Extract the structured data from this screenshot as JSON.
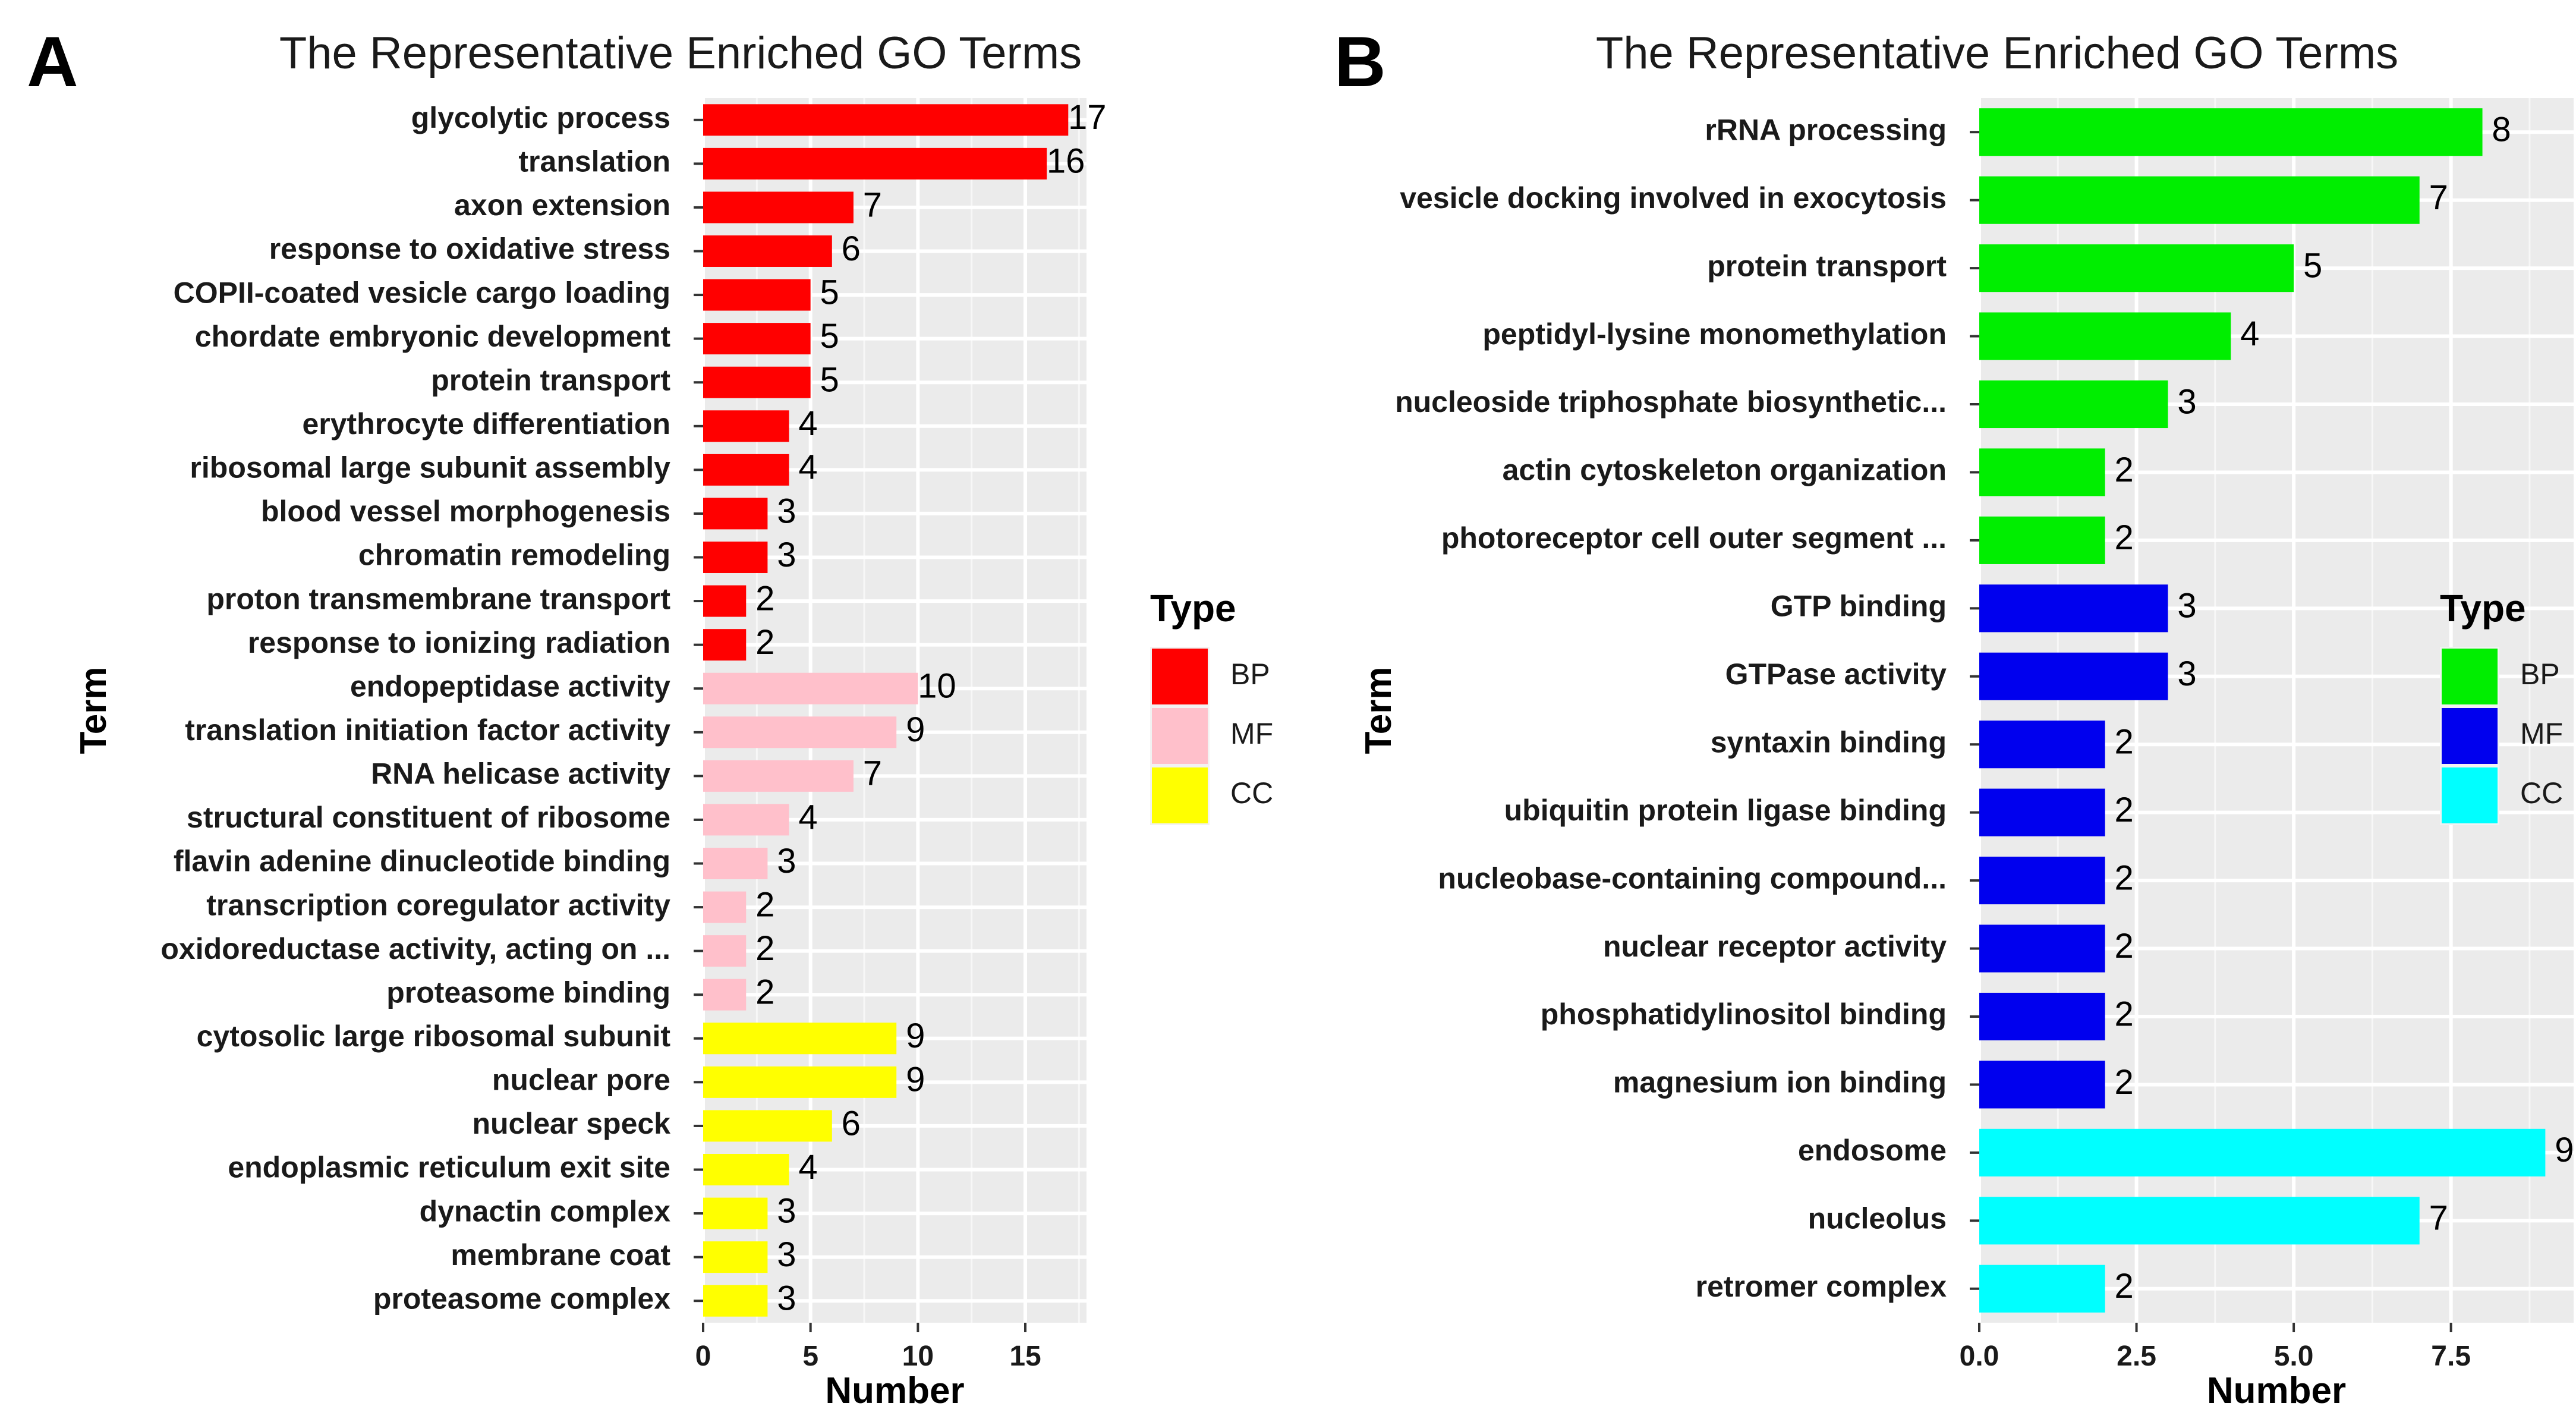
{
  "panels": [
    {
      "letter": "A",
      "chart_data": {
        "type": "bar",
        "orientation": "horizontal",
        "title": "The Representative Enriched GO Terms",
        "xlabel": "Number",
        "ylabel": "Term",
        "xlim": [
          0,
          17.85
        ],
        "xticks": [
          0,
          5,
          10,
          15
        ],
        "xtick_labels": [
          "0",
          "5",
          "10",
          "15"
        ],
        "grid": true,
        "legend": {
          "title": "Type",
          "position": "right",
          "items": [
            {
              "label": "BP",
              "color": "#ff0000"
            },
            {
              "label": "MF",
              "color": "#ffc0cb"
            },
            {
              "label": "CC",
              "color": "#ffff00"
            }
          ]
        },
        "categories": [
          "glycolytic process",
          "translation",
          "axon extension",
          "response to oxidative stress",
          "COPII-coated vesicle cargo loading",
          "chordate embryonic development",
          "protein transport",
          "erythrocyte differentiation",
          "ribosomal large subunit assembly",
          "blood vessel morphogenesis",
          "chromatin remodeling",
          "proton transmembrane transport",
          "response to ionizing radiation",
          "endopeptidase activity",
          "translation initiation factor activity",
          "RNA helicase activity",
          "structural constituent of ribosome",
          "flavin adenine dinucleotide binding",
          "transcription coregulator activity",
          "oxidoreductase activity, acting on ...",
          "proteasome binding",
          "cytosolic large ribosomal subunit",
          "nuclear pore",
          "nuclear speck",
          "endoplasmic reticulum exit site",
          "dynactin complex",
          "membrane coat",
          "proteasome complex"
        ],
        "values": [
          17,
          16,
          7,
          6,
          5,
          5,
          5,
          4,
          4,
          3,
          3,
          2,
          2,
          10,
          9,
          7,
          4,
          3,
          2,
          2,
          2,
          9,
          9,
          6,
          4,
          3,
          3,
          3
        ],
        "value_labels": [
          "17",
          "16",
          "7",
          "6",
          "5",
          "5",
          "5",
          "4",
          "4",
          "3",
          "3",
          "2",
          "2",
          "10",
          "9",
          "7",
          "4",
          "3",
          "2",
          "2",
          "2",
          "9",
          "9",
          "6",
          "4",
          "3",
          "3",
          "3"
        ],
        "types": [
          "BP",
          "BP",
          "BP",
          "BP",
          "BP",
          "BP",
          "BP",
          "BP",
          "BP",
          "BP",
          "BP",
          "BP",
          "BP",
          "MF",
          "MF",
          "MF",
          "MF",
          "MF",
          "MF",
          "MF",
          "MF",
          "CC",
          "CC",
          "CC",
          "CC",
          "CC",
          "CC",
          "CC"
        ]
      }
    },
    {
      "letter": "B",
      "chart_data": {
        "type": "bar",
        "orientation": "horizontal",
        "title": "The Representative Enriched GO Terms",
        "xlabel": "Number",
        "ylabel": "Term",
        "xlim": [
          0,
          9.45
        ],
        "xticks": [
          0,
          2.5,
          5,
          7.5
        ],
        "xtick_labels": [
          "0.0",
          "2.5",
          "5.0",
          "7.5"
        ],
        "grid": true,
        "legend": {
          "title": "Type",
          "position": "right",
          "items": [
            {
              "label": "BP",
              "color": "#00ee00"
            },
            {
              "label": "MF",
              "color": "#0000ee"
            },
            {
              "label": "CC",
              "color": "#00ffff"
            }
          ]
        },
        "categories": [
          "rRNA processing",
          "vesicle docking involved in exocytosis",
          "protein transport",
          "peptidyl-lysine monomethylation",
          "nucleoside triphosphate biosynthetic...",
          "actin cytoskeleton organization",
          "photoreceptor cell outer segment ...",
          "GTP binding",
          "GTPase activity",
          "syntaxin binding",
          "ubiquitin protein ligase binding",
          "nucleobase-containing compound...",
          "nuclear receptor activity",
          "phosphatidylinositol binding",
          "magnesium ion binding",
          "endosome",
          "nucleolus",
          "retromer complex"
        ],
        "values": [
          8,
          7,
          5,
          4,
          3,
          2,
          2,
          3,
          3,
          2,
          2,
          2,
          2,
          2,
          2,
          9,
          7,
          2
        ],
        "value_labels": [
          "8",
          "7",
          "5",
          "4",
          "3",
          "2",
          "2",
          "3",
          "3",
          "2",
          "2",
          "2",
          "2",
          "2",
          "2",
          "9",
          "7",
          "2"
        ],
        "types": [
          "BP",
          "BP",
          "BP",
          "BP",
          "BP",
          "BP",
          "BP",
          "MF",
          "MF",
          "MF",
          "MF",
          "MF",
          "MF",
          "MF",
          "MF",
          "CC",
          "CC",
          "CC"
        ]
      }
    }
  ]
}
